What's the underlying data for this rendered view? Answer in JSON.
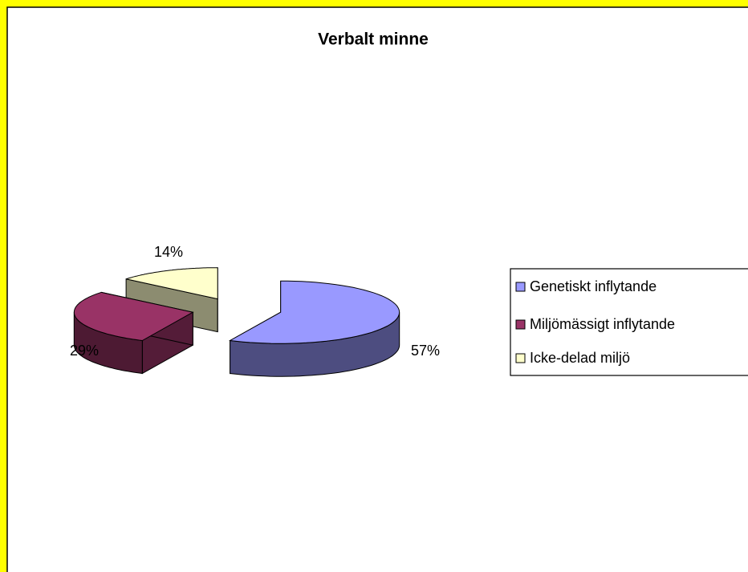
{
  "chart_data": {
    "type": "pie3d",
    "title": "Verbalt minne",
    "categories": [
      "Genetiskt inflytande",
      "Miljömässigt inflytande",
      "Icke-delad miljö"
    ],
    "values": [
      57,
      29,
      14
    ],
    "value_labels": [
      "57%",
      "29%",
      "14%"
    ],
    "colors": [
      "#9999ff",
      "#993366",
      "#ffffcc"
    ],
    "legend": "right"
  }
}
